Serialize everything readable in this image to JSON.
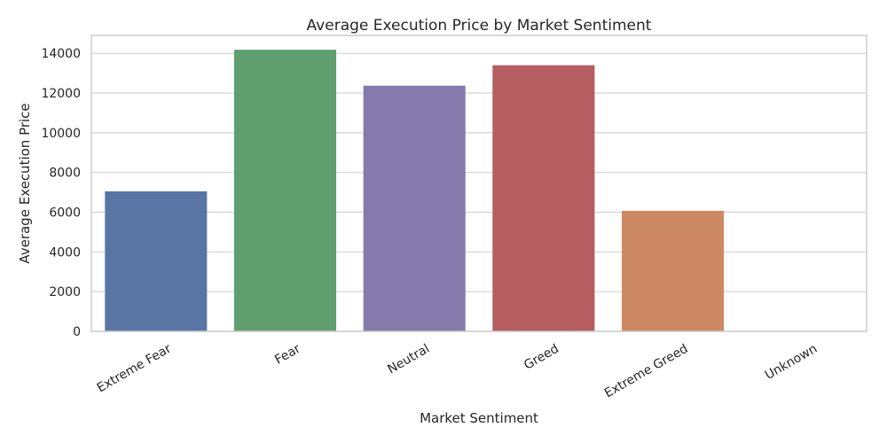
{
  "chart_data": {
    "type": "bar",
    "title": "Average Execution Price by Market Sentiment",
    "xlabel": "Market Sentiment",
    "ylabel": "Average Execution Price",
    "categories": [
      "Extreme Fear",
      "Fear",
      "Neutral",
      "Greed",
      "Extreme Greed",
      "Unknown"
    ],
    "values": [
      7050,
      14180,
      12370,
      13400,
      6070,
      0
    ],
    "colors": [
      "#5875a4",
      "#5f9e6e",
      "#857aab",
      "#b55d60",
      "#cc8963",
      "#8d7866"
    ],
    "ylim": [
      0,
      14900
    ],
    "yticks": [
      0,
      2000,
      4000,
      6000,
      8000,
      10000,
      12000,
      14000
    ],
    "grid": "horizontal",
    "legend": "none"
  }
}
